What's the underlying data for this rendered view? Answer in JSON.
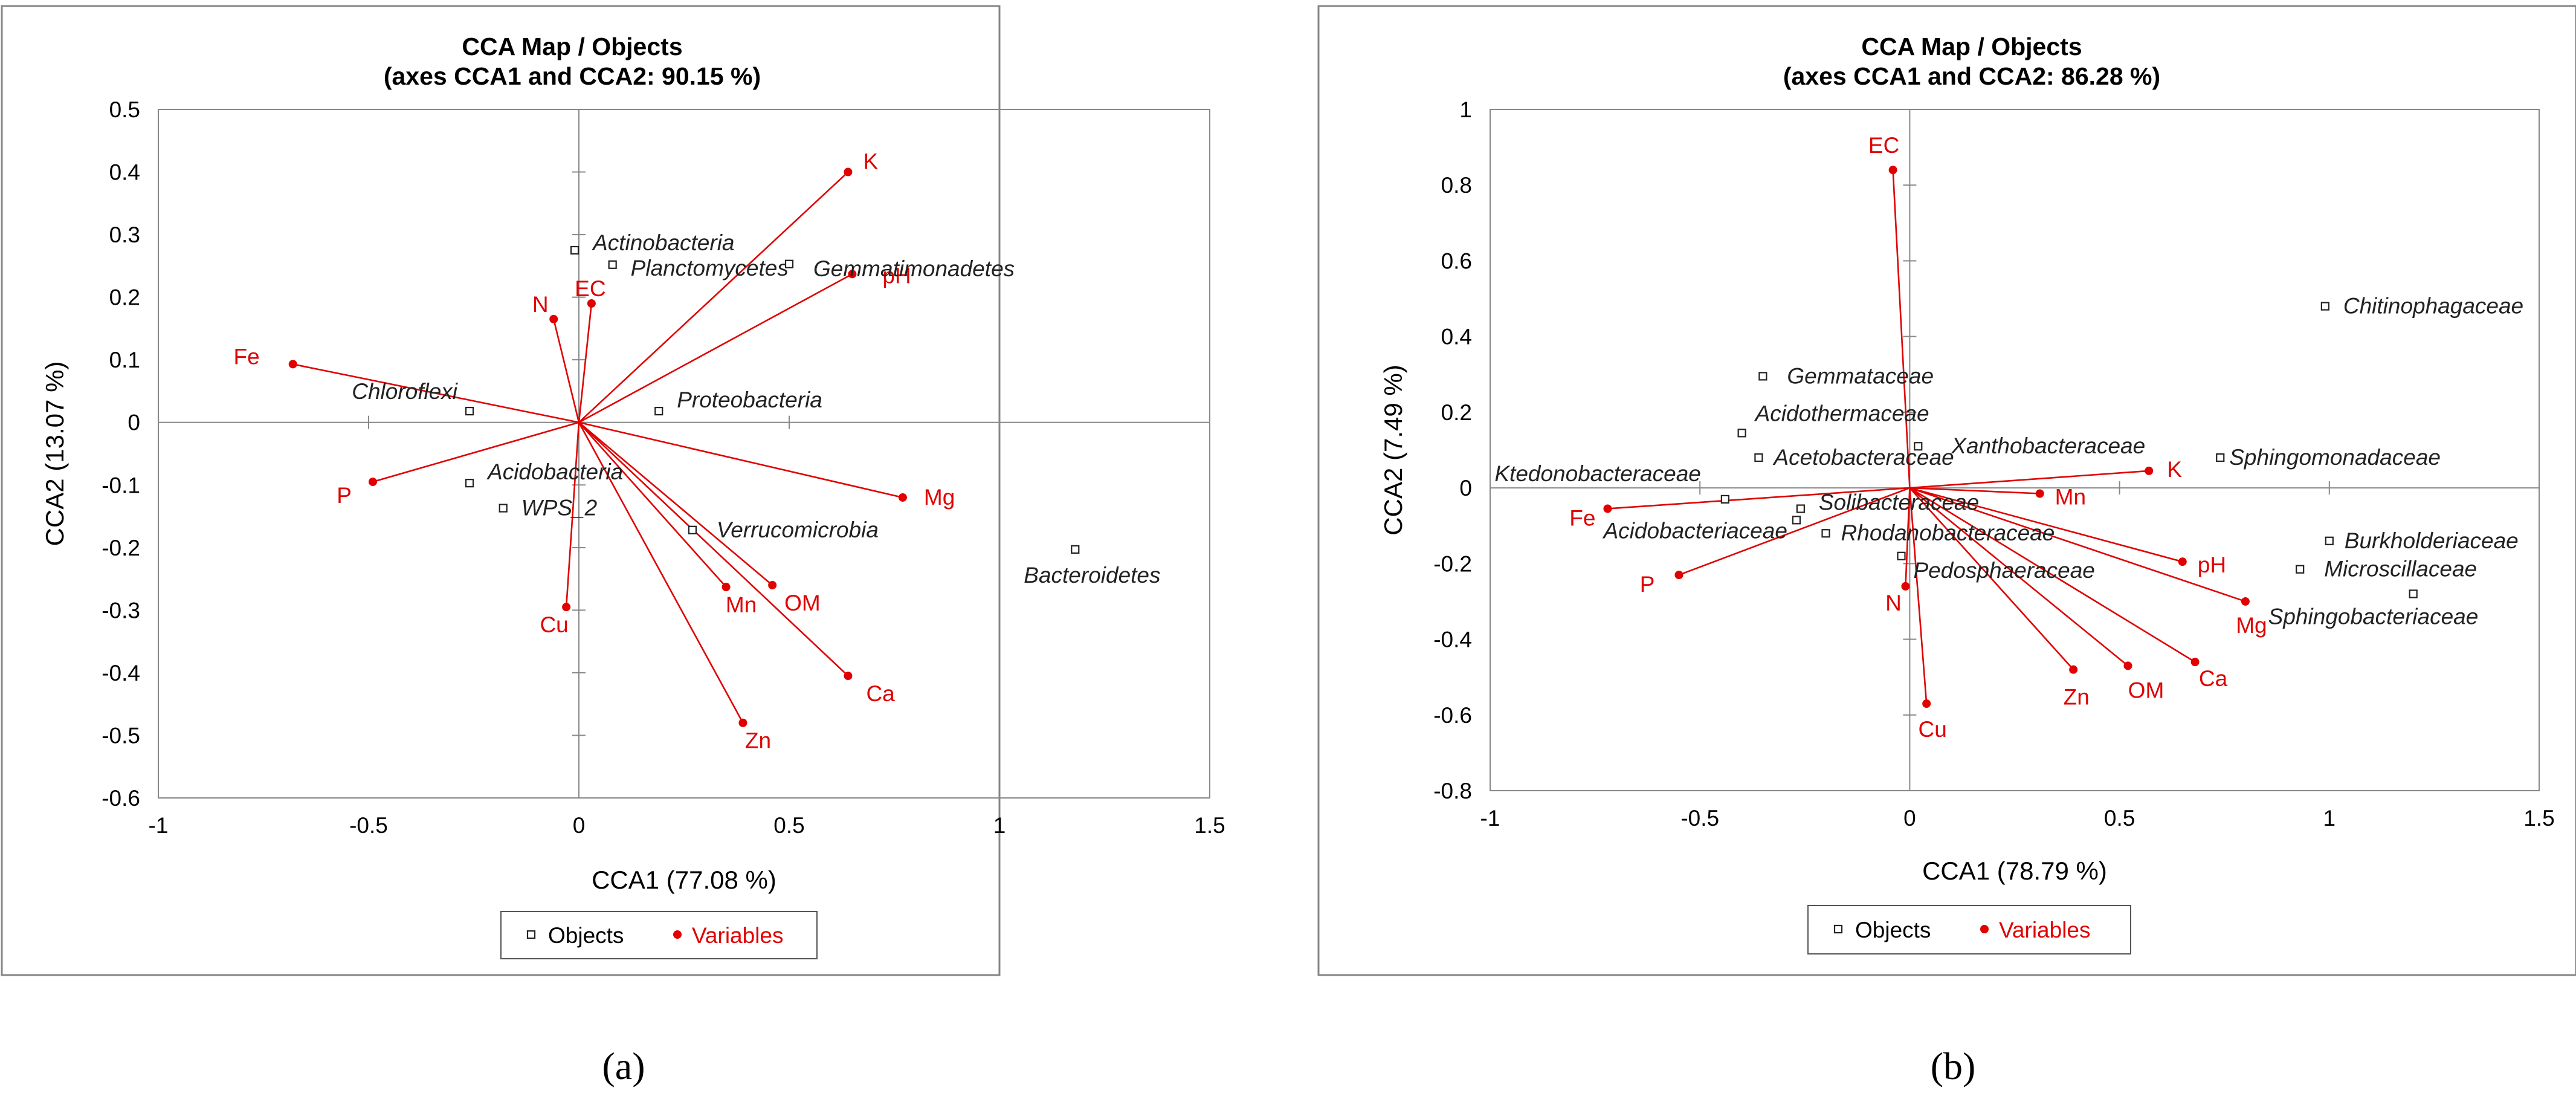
{
  "chart_data": [
    {
      "type": "scatter",
      "title": "CCA Map / Objects",
      "subtitle": "(axes CCA1  and CCA2:  90.15 %)",
      "xlabel": "CCA1 (77.08 %)",
      "ylabel": "CCA2 (13.07 %)",
      "xlim": [
        -1,
        1.5
      ],
      "ylim": [
        -0.6,
        0.5
      ],
      "xticks": [
        -1,
        -0.5,
        0,
        0.5,
        1,
        1.5
      ],
      "xtick_labels": [
        "-1",
        "-0.5",
        "0",
        "0.5",
        "1",
        "1.5"
      ],
      "yticks": [
        0.5,
        0.4,
        0.3,
        0.2,
        0.1,
        0,
        -0.1,
        -0.2,
        -0.3,
        -0.4,
        -0.5,
        -0.6
      ],
      "ytick_labels": [
        "0.5",
        "0.4",
        "0.3",
        "0.2",
        "0.1",
        "0",
        "-0.1",
        "-0.2",
        "-0.3",
        "-0.4",
        "-0.5",
        "-0.6"
      ],
      "legend": [
        "Objects",
        "Variables"
      ],
      "caption": "(a)",
      "objects": [
        {
          "name": "Actinobacteria",
          "x": -0.01,
          "y": 0.275
        },
        {
          "name": "Planctomycetes",
          "x": 0.08,
          "y": 0.252
        },
        {
          "name": "Gemmatimonadetes",
          "x": 0.5,
          "y": 0.253
        },
        {
          "name": "Chloroflexi",
          "x": -0.26,
          "y": 0.018
        },
        {
          "name": "Proteobacteria",
          "x": 0.19,
          "y": 0.018
        },
        {
          "name": "Acidobacteria",
          "x": -0.26,
          "y": -0.097
        },
        {
          "name": "WPS_2",
          "x": -0.18,
          "y": -0.137
        },
        {
          "name": "Verrucomicrobia",
          "x": 0.27,
          "y": -0.172
        },
        {
          "name": "Bacteroidetes",
          "x": 1.18,
          "y": -0.203
        }
      ],
      "variables": [
        {
          "name": "K",
          "x": 0.64,
          "y": 0.4
        },
        {
          "name": "pH",
          "x": 0.65,
          "y": 0.237
        },
        {
          "name": "EC",
          "x": 0.03,
          "y": 0.19
        },
        {
          "name": "N",
          "x": -0.06,
          "y": 0.165
        },
        {
          "name": "Fe",
          "x": -0.68,
          "y": 0.093
        },
        {
          "name": "P",
          "x": -0.49,
          "y": -0.095
        },
        {
          "name": "Mg",
          "x": 0.77,
          "y": -0.12
        },
        {
          "name": "Mn",
          "x": 0.35,
          "y": -0.263
        },
        {
          "name": "OM",
          "x": 0.46,
          "y": -0.26
        },
        {
          "name": "Cu",
          "x": -0.03,
          "y": -0.295
        },
        {
          "name": "Ca",
          "x": 0.64,
          "y": -0.405
        },
        {
          "name": "Zn",
          "x": 0.39,
          "y": -0.48
        }
      ]
    },
    {
      "type": "scatter",
      "title": "CCA Map / Objects",
      "subtitle": "(axes CCA1  and CCA2:  86.28 %)",
      "xlabel": "CCA1 (78.79 %)",
      "ylabel": "CCA2 (7.49 %)",
      "xlim": [
        -1,
        1.5
      ],
      "ylim": [
        -0.8,
        1
      ],
      "xticks": [
        -1,
        -0.5,
        0,
        0.5,
        1,
        1.5
      ],
      "xtick_labels": [
        "-1",
        "-0.5",
        "0",
        "0.5",
        "1",
        "1.5"
      ],
      "yticks": [
        1,
        0.8,
        0.6,
        0.4,
        0.2,
        0,
        -0.2,
        -0.4,
        -0.6,
        -0.8
      ],
      "ytick_labels": [
        "1",
        "0.8",
        "0.6",
        "0.4",
        "0.2",
        "0",
        "-0.2",
        "-0.4",
        "-0.6",
        "-0.8"
      ],
      "legend": [
        "Objects",
        "Variables"
      ],
      "caption": "(b)",
      "objects": [
        {
          "name": "Chitinophagaceae",
          "x": 0.99,
          "y": 0.48
        },
        {
          "name": "Gemmataceae",
          "x": -0.35,
          "y": 0.295
        },
        {
          "name": "Acidothermaceae",
          "x": -0.4,
          "y": 0.145
        },
        {
          "name": "Xanthobacteraceae",
          "x": 0.02,
          "y": 0.11
        },
        {
          "name": "Sphingomonadaceae",
          "x": 0.74,
          "y": 0.08
        },
        {
          "name": "Acetobacteraceae",
          "x": -0.36,
          "y": 0.08
        },
        {
          "name": "Ktedonobacteraceae",
          "x": -0.44,
          "y": -0.03
        },
        {
          "name": "Solibacteraceae",
          "x": -0.26,
          "y": -0.055
        },
        {
          "name": "Acidobacteriaceae",
          "x": -0.27,
          "y": -0.085
        },
        {
          "name": "Rhodanobacteraceae",
          "x": -0.2,
          "y": -0.12
        },
        {
          "name": "Pedosphaeraceae",
          "x": -0.02,
          "y": -0.18
        },
        {
          "name": "Burkholderiaceae",
          "x": 1.0,
          "y": -0.14
        },
        {
          "name": "Microscillaceae",
          "x": 0.93,
          "y": -0.215
        },
        {
          "name": "Sphingobacteriaceae",
          "x": 1.2,
          "y": -0.28
        }
      ],
      "variables": [
        {
          "name": "EC",
          "x": -0.04,
          "y": 0.84
        },
        {
          "name": "K",
          "x": 0.57,
          "y": 0.045
        },
        {
          "name": "Mn",
          "x": 0.31,
          "y": -0.015
        },
        {
          "name": "Fe",
          "x": -0.72,
          "y": -0.055
        },
        {
          "name": "P",
          "x": -0.55,
          "y": -0.23
        },
        {
          "name": "pH",
          "x": 0.65,
          "y": -0.195
        },
        {
          "name": "Mg",
          "x": 0.8,
          "y": -0.3
        },
        {
          "name": "N",
          "x": -0.01,
          "y": -0.26
        },
        {
          "name": "Zn",
          "x": 0.39,
          "y": -0.48
        },
        {
          "name": "OM",
          "x": 0.52,
          "y": -0.47
        },
        {
          "name": "Ca",
          "x": 0.68,
          "y": -0.46
        },
        {
          "name": "Cu",
          "x": 0.04,
          "y": -0.57
        }
      ]
    }
  ],
  "colors": {
    "variables": "#e00000",
    "objects": "#222222",
    "grid_axes": "#888888",
    "frame": "#858585"
  }
}
